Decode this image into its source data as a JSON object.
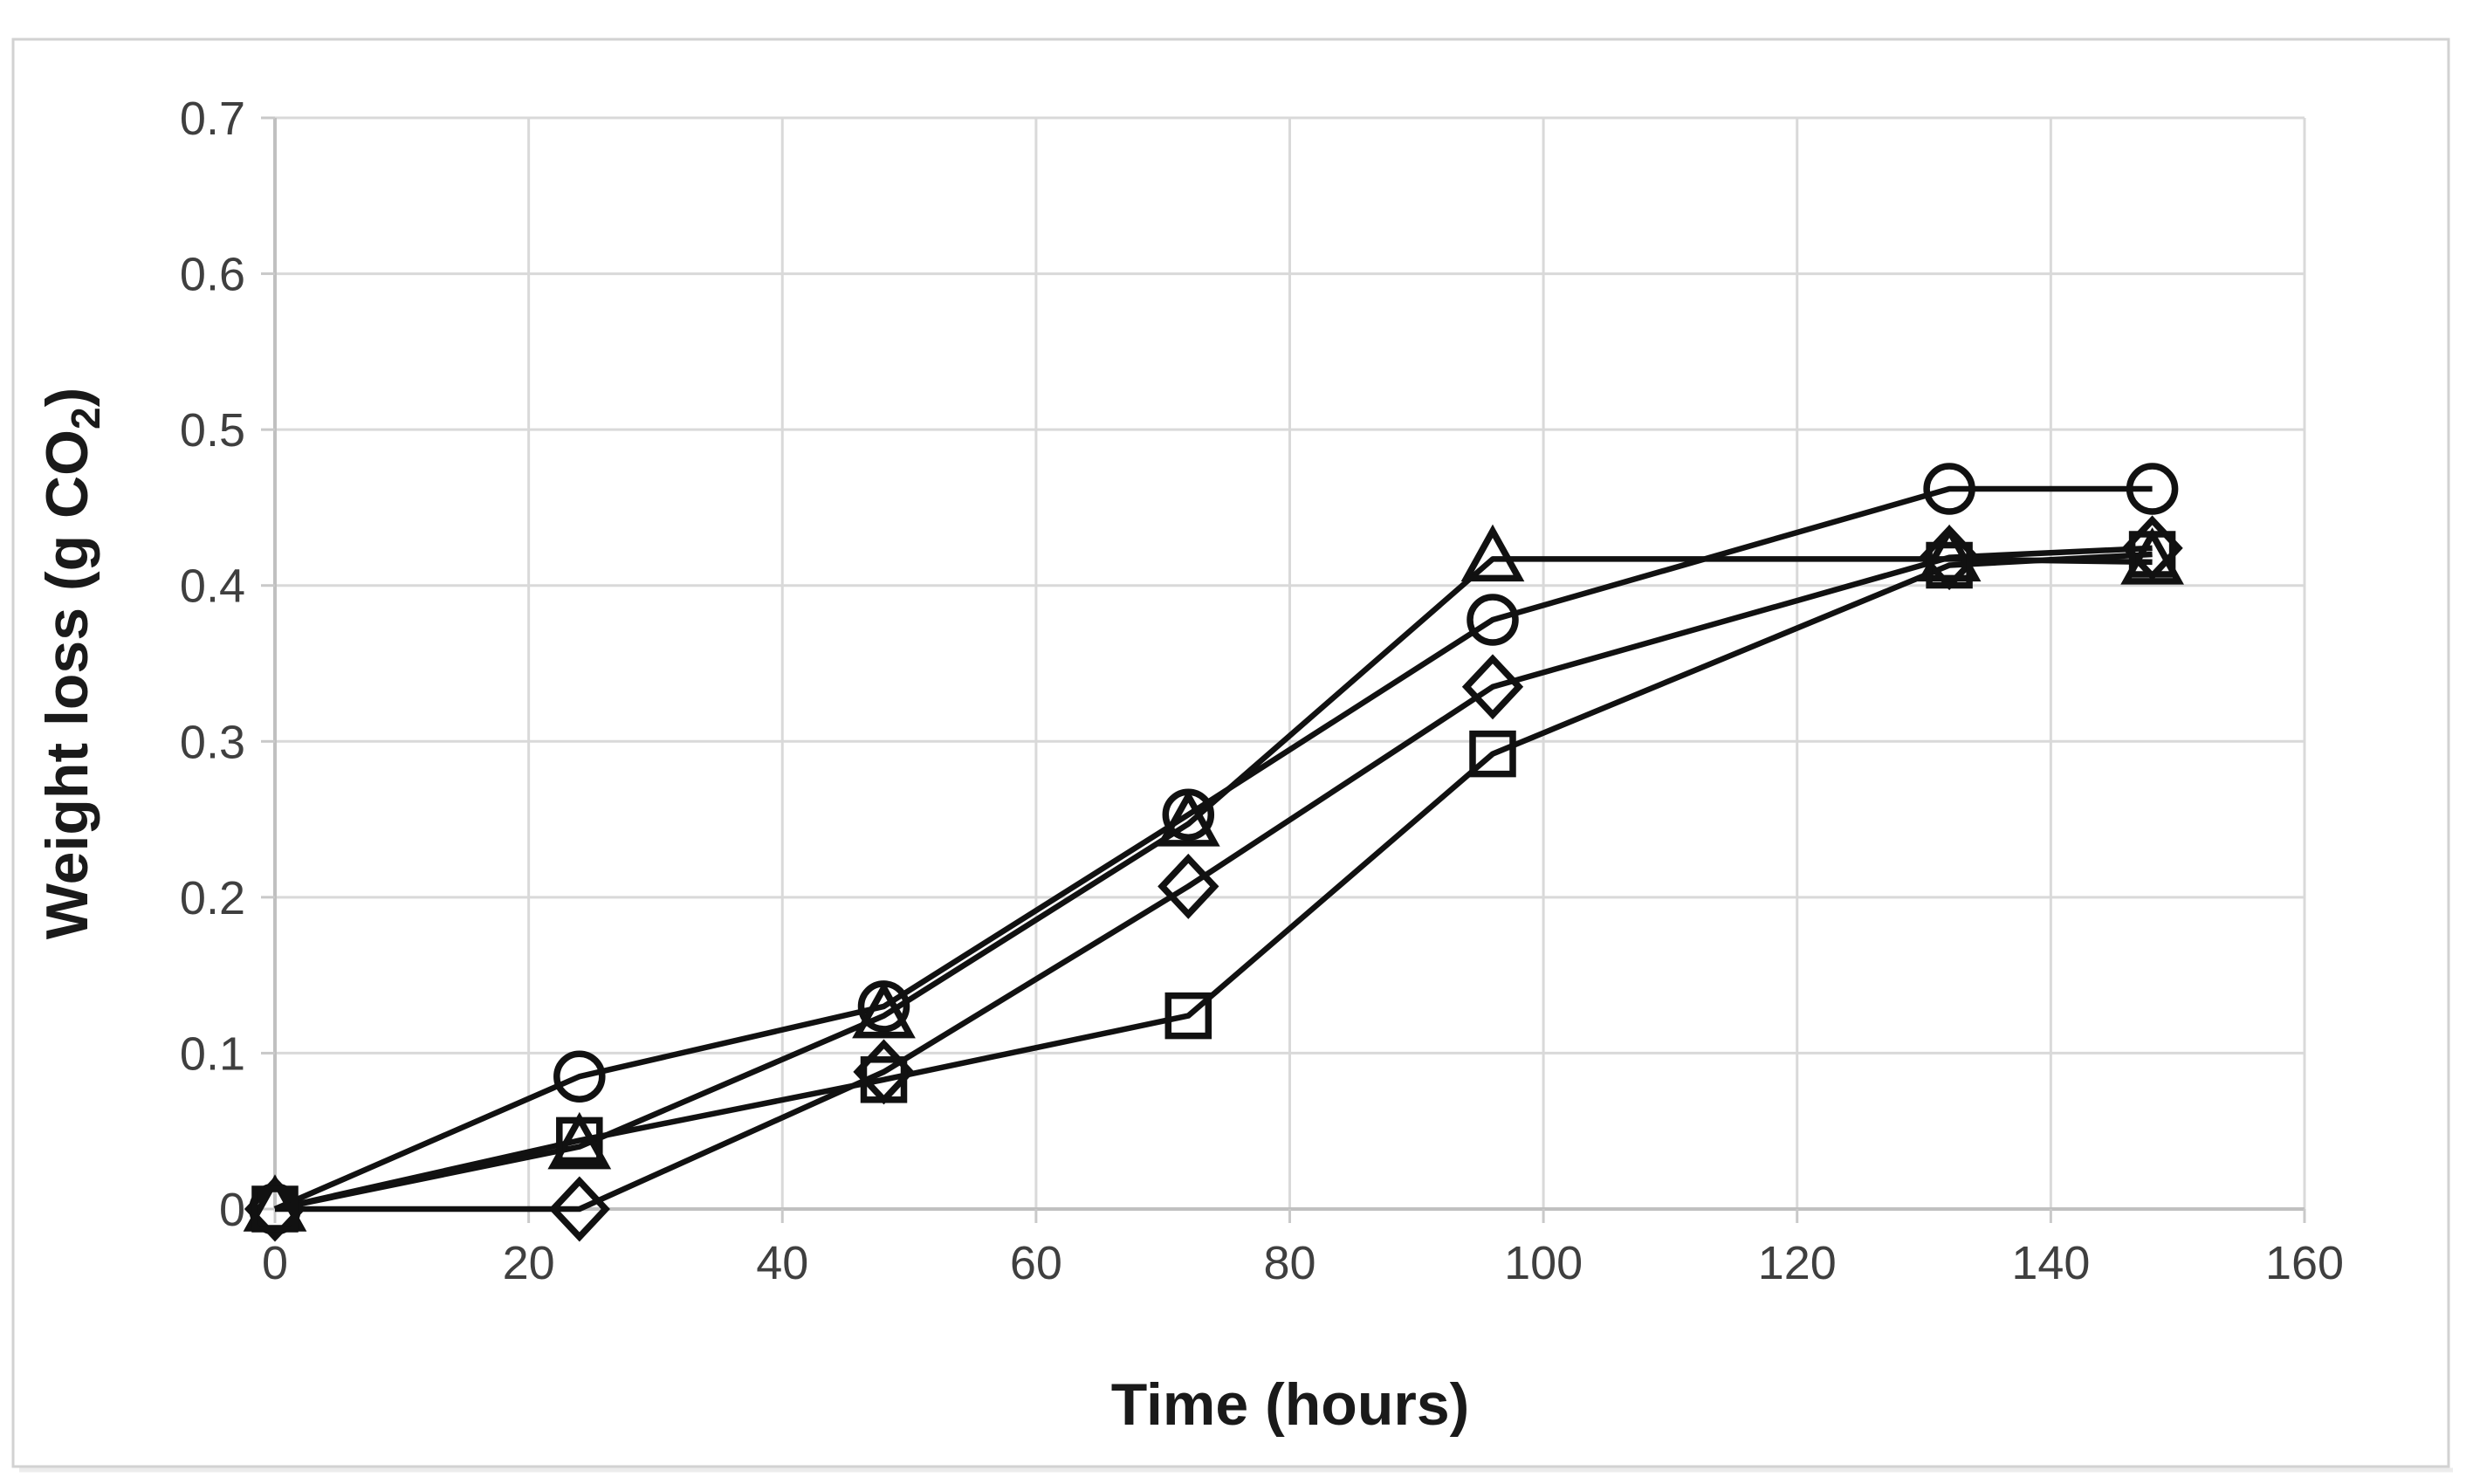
{
  "chart_data": {
    "type": "line",
    "title": "",
    "xlabel": "Time (hours)",
    "ylabel": "Weight loss (g CO2)",
    "ylabel_parts": {
      "main": "Weight loss (g CO",
      "sub": "2",
      "close": ")"
    },
    "x": [
      0,
      24,
      48,
      72,
      96,
      132,
      148
    ],
    "series": [
      {
        "name": "circle-series",
        "marker": "circle",
        "values": [
          0,
          0.085,
          0.13,
          0.253,
          0.378,
          0.462,
          0.462
        ]
      },
      {
        "name": "triangle-series",
        "marker": "triangle",
        "values": [
          0,
          0.04,
          0.124,
          0.247,
          0.417,
          0.417,
          0.415
        ]
      },
      {
        "name": "diamond-series",
        "marker": "diamond",
        "values": [
          0,
          0.0,
          0.088,
          0.207,
          0.335,
          0.418,
          0.424
        ]
      },
      {
        "name": "square-series",
        "marker": "square",
        "values": [
          0,
          0.044,
          0.083,
          0.124,
          0.292,
          0.413,
          0.42
        ]
      }
    ],
    "xlim": [
      0,
      160
    ],
    "ylim": [
      0,
      0.7
    ],
    "x_ticks": [
      "0",
      "20",
      "40",
      "60",
      "80",
      "100",
      "120",
      "140",
      "160"
    ],
    "x_tick_values": [
      0,
      20,
      40,
      60,
      80,
      100,
      120,
      140,
      160
    ],
    "y_ticks": [
      "0",
      "0.1",
      "0.2",
      "0.3",
      "0.4",
      "0.5",
      "0.6",
      "0.7"
    ],
    "y_tick_values": [
      0,
      0.1,
      0.2,
      0.3,
      0.4,
      0.5,
      0.6,
      0.7
    ],
    "grid": true,
    "legend": "none",
    "colors": {
      "series_stroke": "#111111",
      "gridline": "#d9d9d9",
      "axis_line": "#c0c0c0",
      "tick_mark": "#c9c9c9",
      "tick_label": "#3f3f3f",
      "axis_title": "#1a1a1a",
      "figure_border": "#d2d2d2",
      "background": "#ffffff"
    }
  }
}
